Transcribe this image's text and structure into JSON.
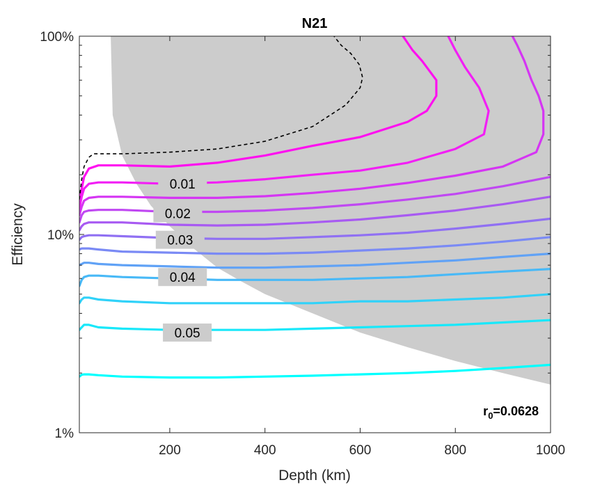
{
  "chart_data": {
    "type": "line",
    "title": "N21",
    "xlabel": "Depth (km)",
    "ylabel": "Efficiency",
    "xlim": [
      10,
      1000
    ],
    "ylim": [
      1,
      100
    ],
    "yscale": "log",
    "grid": false,
    "xticks": [
      200,
      400,
      600,
      800,
      1000
    ],
    "xtick_labels": [
      "200",
      "400",
      "600",
      "800",
      "1000"
    ],
    "yticks": [
      1,
      10,
      100
    ],
    "ytick_labels": [
      "1%",
      "10%",
      "100%"
    ],
    "annotation": {
      "base": "r",
      "sub": "0",
      "rest": "=0.0628"
    },
    "shaded_region": {
      "color": "#cccccc",
      "boundary": [
        [
          76,
          100
        ],
        [
          80,
          40
        ],
        [
          100,
          25
        ],
        [
          130,
          18
        ],
        [
          160,
          14
        ],
        [
          200,
          11
        ],
        [
          250,
          8.5
        ],
        [
          300,
          6.8
        ],
        [
          350,
          5.8
        ],
        [
          400,
          5.0
        ],
        [
          500,
          4.0
        ],
        [
          600,
          3.2
        ],
        [
          700,
          2.7
        ],
        [
          800,
          2.3
        ],
        [
          900,
          2.0
        ],
        [
          1000,
          1.75
        ]
      ]
    },
    "dashed_contour": {
      "color": "#000000",
      "points": [
        [
          10,
          15
        ],
        [
          15,
          19
        ],
        [
          20,
          22
        ],
        [
          30,
          24.5
        ],
        [
          40,
          25.5
        ],
        [
          100,
          25.5
        ],
        [
          200,
          26
        ],
        [
          300,
          27
        ],
        [
          400,
          29.5
        ],
        [
          500,
          35
        ],
        [
          570,
          45
        ],
        [
          600,
          55
        ],
        [
          605,
          62
        ],
        [
          598,
          72
        ],
        [
          580,
          82
        ],
        [
          560,
          90
        ],
        [
          545,
          100
        ]
      ]
    },
    "series": [
      {
        "name": "",
        "color": "#ff10f0",
        "points": [
          [
            10,
            14.5
          ],
          [
            15,
            17
          ],
          [
            20,
            19.5
          ],
          [
            30,
            21.5
          ],
          [
            50,
            22.3
          ],
          [
            100,
            22.3
          ],
          [
            200,
            22.0
          ],
          [
            300,
            23.0
          ],
          [
            400,
            25.0
          ],
          [
            500,
            28.0
          ],
          [
            600,
            31.0
          ],
          [
            700,
            37.0
          ],
          [
            740,
            42.0
          ],
          [
            760,
            50.0
          ],
          [
            760,
            60.0
          ],
          [
            730,
            75.0
          ],
          [
            710,
            85.0
          ],
          [
            690,
            100.0
          ]
        ]
      },
      {
        "name": "0.01",
        "label_at": [
          180,
          18.0
        ],
        "color": "#f21ff5",
        "points": [
          [
            10,
            13.5
          ],
          [
            15,
            15.5
          ],
          [
            20,
            17.0
          ],
          [
            30,
            18.0
          ],
          [
            50,
            18.3
          ],
          [
            100,
            18.3
          ],
          [
            200,
            18.0
          ],
          [
            300,
            18.3
          ],
          [
            400,
            19.0
          ],
          [
            500,
            20.0
          ],
          [
            600,
            21.0
          ],
          [
            700,
            23.0
          ],
          [
            800,
            27.0
          ],
          [
            860,
            32.0
          ],
          [
            870,
            42.0
          ],
          [
            850,
            55.0
          ],
          [
            820,
            70.0
          ],
          [
            800,
            85.0
          ],
          [
            785,
            100.0
          ]
        ]
      },
      {
        "name": "",
        "color": "#d535f3",
        "points": [
          [
            10,
            12.5
          ],
          [
            15,
            13.8
          ],
          [
            20,
            14.8
          ],
          [
            30,
            15.3
          ],
          [
            50,
            15.5
          ],
          [
            100,
            15.5
          ],
          [
            200,
            15.3
          ],
          [
            300,
            15.3
          ],
          [
            400,
            15.6
          ],
          [
            500,
            16.2
          ],
          [
            600,
            17.0
          ],
          [
            700,
            18.2
          ],
          [
            800,
            19.8
          ],
          [
            900,
            22.0
          ],
          [
            970,
            26.0
          ],
          [
            985,
            32.0
          ],
          [
            985,
            42.0
          ],
          [
            975,
            50.0
          ],
          [
            960,
            60.0
          ],
          [
            945,
            75.0
          ],
          [
            930,
            90.0
          ],
          [
            920,
            100.0
          ]
        ]
      },
      {
        "name": "0.02",
        "label_at": [
          170,
          12.8
        ],
        "color": "#c048f2",
        "points": [
          [
            10,
            11.5
          ],
          [
            15,
            12.5
          ],
          [
            20,
            13.0
          ],
          [
            30,
            13.2
          ],
          [
            50,
            13.3
          ],
          [
            100,
            13.3
          ],
          [
            200,
            13.0
          ],
          [
            300,
            13.0
          ],
          [
            400,
            13.2
          ],
          [
            500,
            13.6
          ],
          [
            600,
            14.2
          ],
          [
            700,
            15.0
          ],
          [
            800,
            16.0
          ],
          [
            900,
            17.5
          ],
          [
            1000,
            19.5
          ]
        ]
      },
      {
        "name": "",
        "color": "#a85af2",
        "points": [
          [
            10,
            10.5
          ],
          [
            15,
            11.0
          ],
          [
            20,
            11.3
          ],
          [
            30,
            11.5
          ],
          [
            50,
            11.5
          ],
          [
            100,
            11.5
          ],
          [
            200,
            11.2
          ],
          [
            300,
            11.1
          ],
          [
            400,
            11.2
          ],
          [
            500,
            11.5
          ],
          [
            600,
            11.9
          ],
          [
            700,
            12.5
          ],
          [
            800,
            13.2
          ],
          [
            900,
            14.2
          ],
          [
            1000,
            15.5
          ]
        ]
      },
      {
        "name": "0.03",
        "label_at": [
          175,
          9.4
        ],
        "color": "#9070f3",
        "points": [
          [
            10,
            9.4
          ],
          [
            15,
            9.7
          ],
          [
            20,
            9.8
          ],
          [
            30,
            9.9
          ],
          [
            50,
            9.9
          ],
          [
            100,
            9.8
          ],
          [
            200,
            9.6
          ],
          [
            300,
            9.5
          ],
          [
            400,
            9.5
          ],
          [
            500,
            9.7
          ],
          [
            600,
            9.9
          ],
          [
            700,
            10.2
          ],
          [
            800,
            10.7
          ],
          [
            900,
            11.3
          ],
          [
            1000,
            12.0
          ]
        ]
      },
      {
        "name": "",
        "color": "#7a8af5",
        "points": [
          [
            10,
            8.4
          ],
          [
            15,
            8.5
          ],
          [
            20,
            8.5
          ],
          [
            30,
            8.5
          ],
          [
            50,
            8.4
          ],
          [
            100,
            8.2
          ],
          [
            200,
            8.1
          ],
          [
            300,
            8.0
          ],
          [
            400,
            8.0
          ],
          [
            500,
            8.1
          ],
          [
            600,
            8.3
          ],
          [
            700,
            8.5
          ],
          [
            800,
            8.8
          ],
          [
            900,
            9.2
          ],
          [
            1000,
            9.7
          ]
        ]
      },
      {
        "name": "",
        "color": "#60a2f6",
        "points": [
          [
            10,
            7.0
          ],
          [
            15,
            7.1
          ],
          [
            20,
            7.2
          ],
          [
            30,
            7.2
          ],
          [
            50,
            7.1
          ],
          [
            100,
            7.0
          ],
          [
            200,
            6.9
          ],
          [
            300,
            6.8
          ],
          [
            400,
            6.8
          ],
          [
            500,
            6.9
          ],
          [
            600,
            7.0
          ],
          [
            700,
            7.2
          ],
          [
            800,
            7.4
          ],
          [
            900,
            7.7
          ],
          [
            1000,
            8.0
          ]
        ]
      },
      {
        "name": "0.04",
        "label_at": [
          180,
          6.1
        ],
        "color": "#48b9f7",
        "points": [
          [
            10,
            5.5
          ],
          [
            15,
            5.9
          ],
          [
            20,
            6.1
          ],
          [
            30,
            6.2
          ],
          [
            50,
            6.2
          ],
          [
            100,
            6.1
          ],
          [
            200,
            6.0
          ],
          [
            300,
            5.9
          ],
          [
            400,
            5.9
          ],
          [
            500,
            5.9
          ],
          [
            600,
            6.0
          ],
          [
            700,
            6.1
          ],
          [
            800,
            6.3
          ],
          [
            900,
            6.5
          ],
          [
            1000,
            6.7
          ]
        ]
      },
      {
        "name": "",
        "color": "#30d2f9",
        "points": [
          [
            10,
            4.5
          ],
          [
            15,
            4.7
          ],
          [
            20,
            4.8
          ],
          [
            30,
            4.8
          ],
          [
            50,
            4.7
          ],
          [
            100,
            4.6
          ],
          [
            200,
            4.5
          ],
          [
            300,
            4.5
          ],
          [
            400,
            4.5
          ],
          [
            500,
            4.5
          ],
          [
            600,
            4.6
          ],
          [
            700,
            4.6
          ],
          [
            800,
            4.7
          ],
          [
            900,
            4.8
          ],
          [
            1000,
            5.0
          ]
        ]
      },
      {
        "name": "0.05",
        "label_at": [
          190,
          3.2
        ],
        "color": "#18e8fa",
        "points": [
          [
            10,
            3.3
          ],
          [
            15,
            3.4
          ],
          [
            20,
            3.5
          ],
          [
            30,
            3.5
          ],
          [
            50,
            3.4
          ],
          [
            100,
            3.35
          ],
          [
            200,
            3.3
          ],
          [
            300,
            3.3
          ],
          [
            400,
            3.3
          ],
          [
            500,
            3.35
          ],
          [
            600,
            3.4
          ],
          [
            700,
            3.45
          ],
          [
            800,
            3.5
          ],
          [
            900,
            3.6
          ],
          [
            1000,
            3.7
          ]
        ]
      },
      {
        "name": "",
        "color": "#00ffff",
        "points": [
          [
            10,
            1.92
          ],
          [
            15,
            1.96
          ],
          [
            20,
            1.97
          ],
          [
            30,
            1.97
          ],
          [
            50,
            1.95
          ],
          [
            100,
            1.92
          ],
          [
            200,
            1.9
          ],
          [
            300,
            1.9
          ],
          [
            400,
            1.92
          ],
          [
            500,
            1.94
          ],
          [
            600,
            1.97
          ],
          [
            700,
            2.0
          ],
          [
            800,
            2.05
          ],
          [
            900,
            2.12
          ],
          [
            1000,
            2.2
          ]
        ]
      }
    ]
  }
}
